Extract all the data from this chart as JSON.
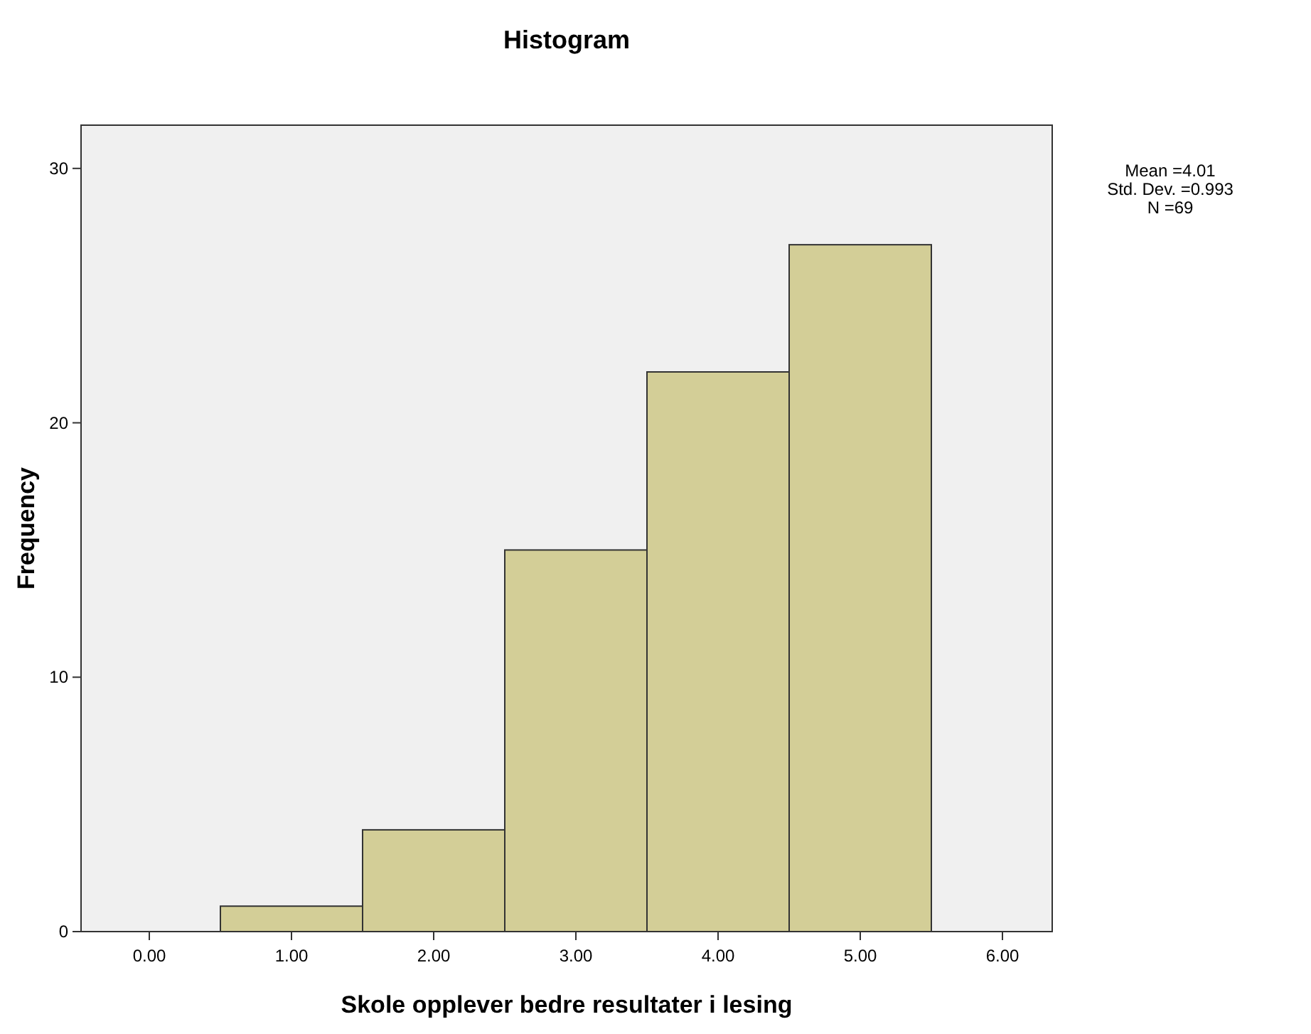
{
  "chart_data": {
    "type": "histogram",
    "title": "Histogram",
    "xlabel": "Skole opplever bedre resultater i lesing",
    "ylabel": "Frequency",
    "bins": [
      0.5,
      1.5,
      2.5,
      3.5,
      4.5,
      5.5
    ],
    "values": [
      1,
      4,
      15,
      22,
      27
    ],
    "color": "#d3ce97",
    "xlim": [
      -0.48,
      6.35
    ],
    "ylim": [
      0,
      31.7
    ],
    "xticks": [
      {
        "value": 0,
        "label": "0.00"
      },
      {
        "value": 1,
        "label": "1.00"
      },
      {
        "value": 2,
        "label": "2.00"
      },
      {
        "value": 3,
        "label": "3.00"
      },
      {
        "value": 4,
        "label": "4.00"
      },
      {
        "value": 5,
        "label": "5.00"
      },
      {
        "value": 6,
        "label": "6.00"
      }
    ],
    "yticks": [
      0,
      10,
      20,
      30
    ],
    "grid": false,
    "annotations": [
      "Mean =4.01",
      "Std. Dev. =0.993",
      "N =69"
    ]
  }
}
